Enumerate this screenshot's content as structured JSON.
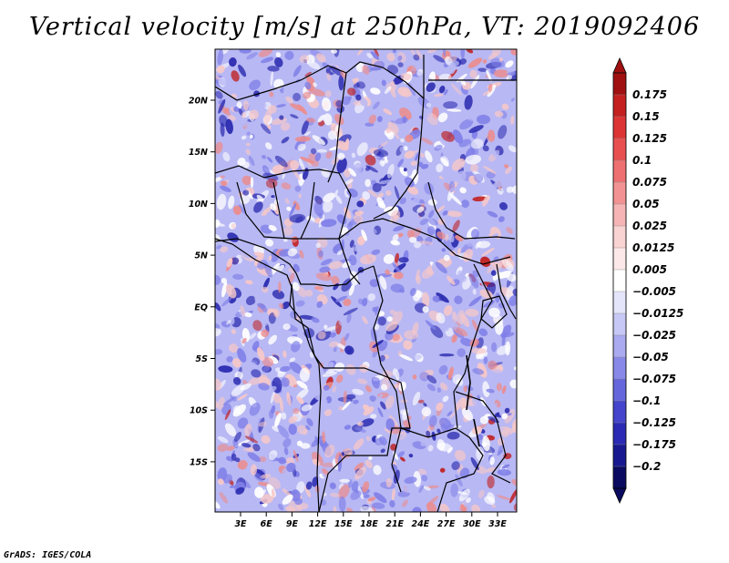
{
  "title": "Vertical velocity [m/s] at 250hPa, VT: 2019092406",
  "credit": "GrADS: IGES/COLA",
  "map": {
    "lat_ticks": [
      "20N",
      "15N",
      "10N",
      "5N",
      "EQ",
      "5S",
      "10S",
      "15S"
    ],
    "lon_ticks": [
      "3E",
      "6E",
      "9E",
      "12E",
      "15E",
      "18E",
      "21E",
      "24E",
      "27E",
      "30E",
      "33E"
    ],
    "field_colors": {
      "sinking_strong": "#2b2bb0",
      "sinking": "#8080e8",
      "sinking_weak": "#b8b8f4",
      "neutral": "#ffffff",
      "rising_weak": "#f6c8c8",
      "rising": "#ec8c8c",
      "rising_strong": "#c02020"
    }
  },
  "colorbar": {
    "labels": [
      "0.175",
      "0.15",
      "0.125",
      "0.1",
      "0.075",
      "0.05",
      "0.025",
      "0.0125",
      "0.005",
      "−0.005",
      "−0.0125",
      "−0.025",
      "−0.05",
      "−0.075",
      "−0.1",
      "−0.125",
      "−0.175",
      "−0.2"
    ],
    "colors": [
      "#a01010",
      "#c42020",
      "#dc3434",
      "#e85050",
      "#ee7070",
      "#f29292",
      "#f6b4b4",
      "#f9d2d2",
      "#fce8e8",
      "#ffffff",
      "#e4e4fb",
      "#c8c8f6",
      "#aaaaf0",
      "#8888e8",
      "#6666dc",
      "#4444cc",
      "#2a2ab4",
      "#181890",
      "#0a0a60"
    ]
  }
}
